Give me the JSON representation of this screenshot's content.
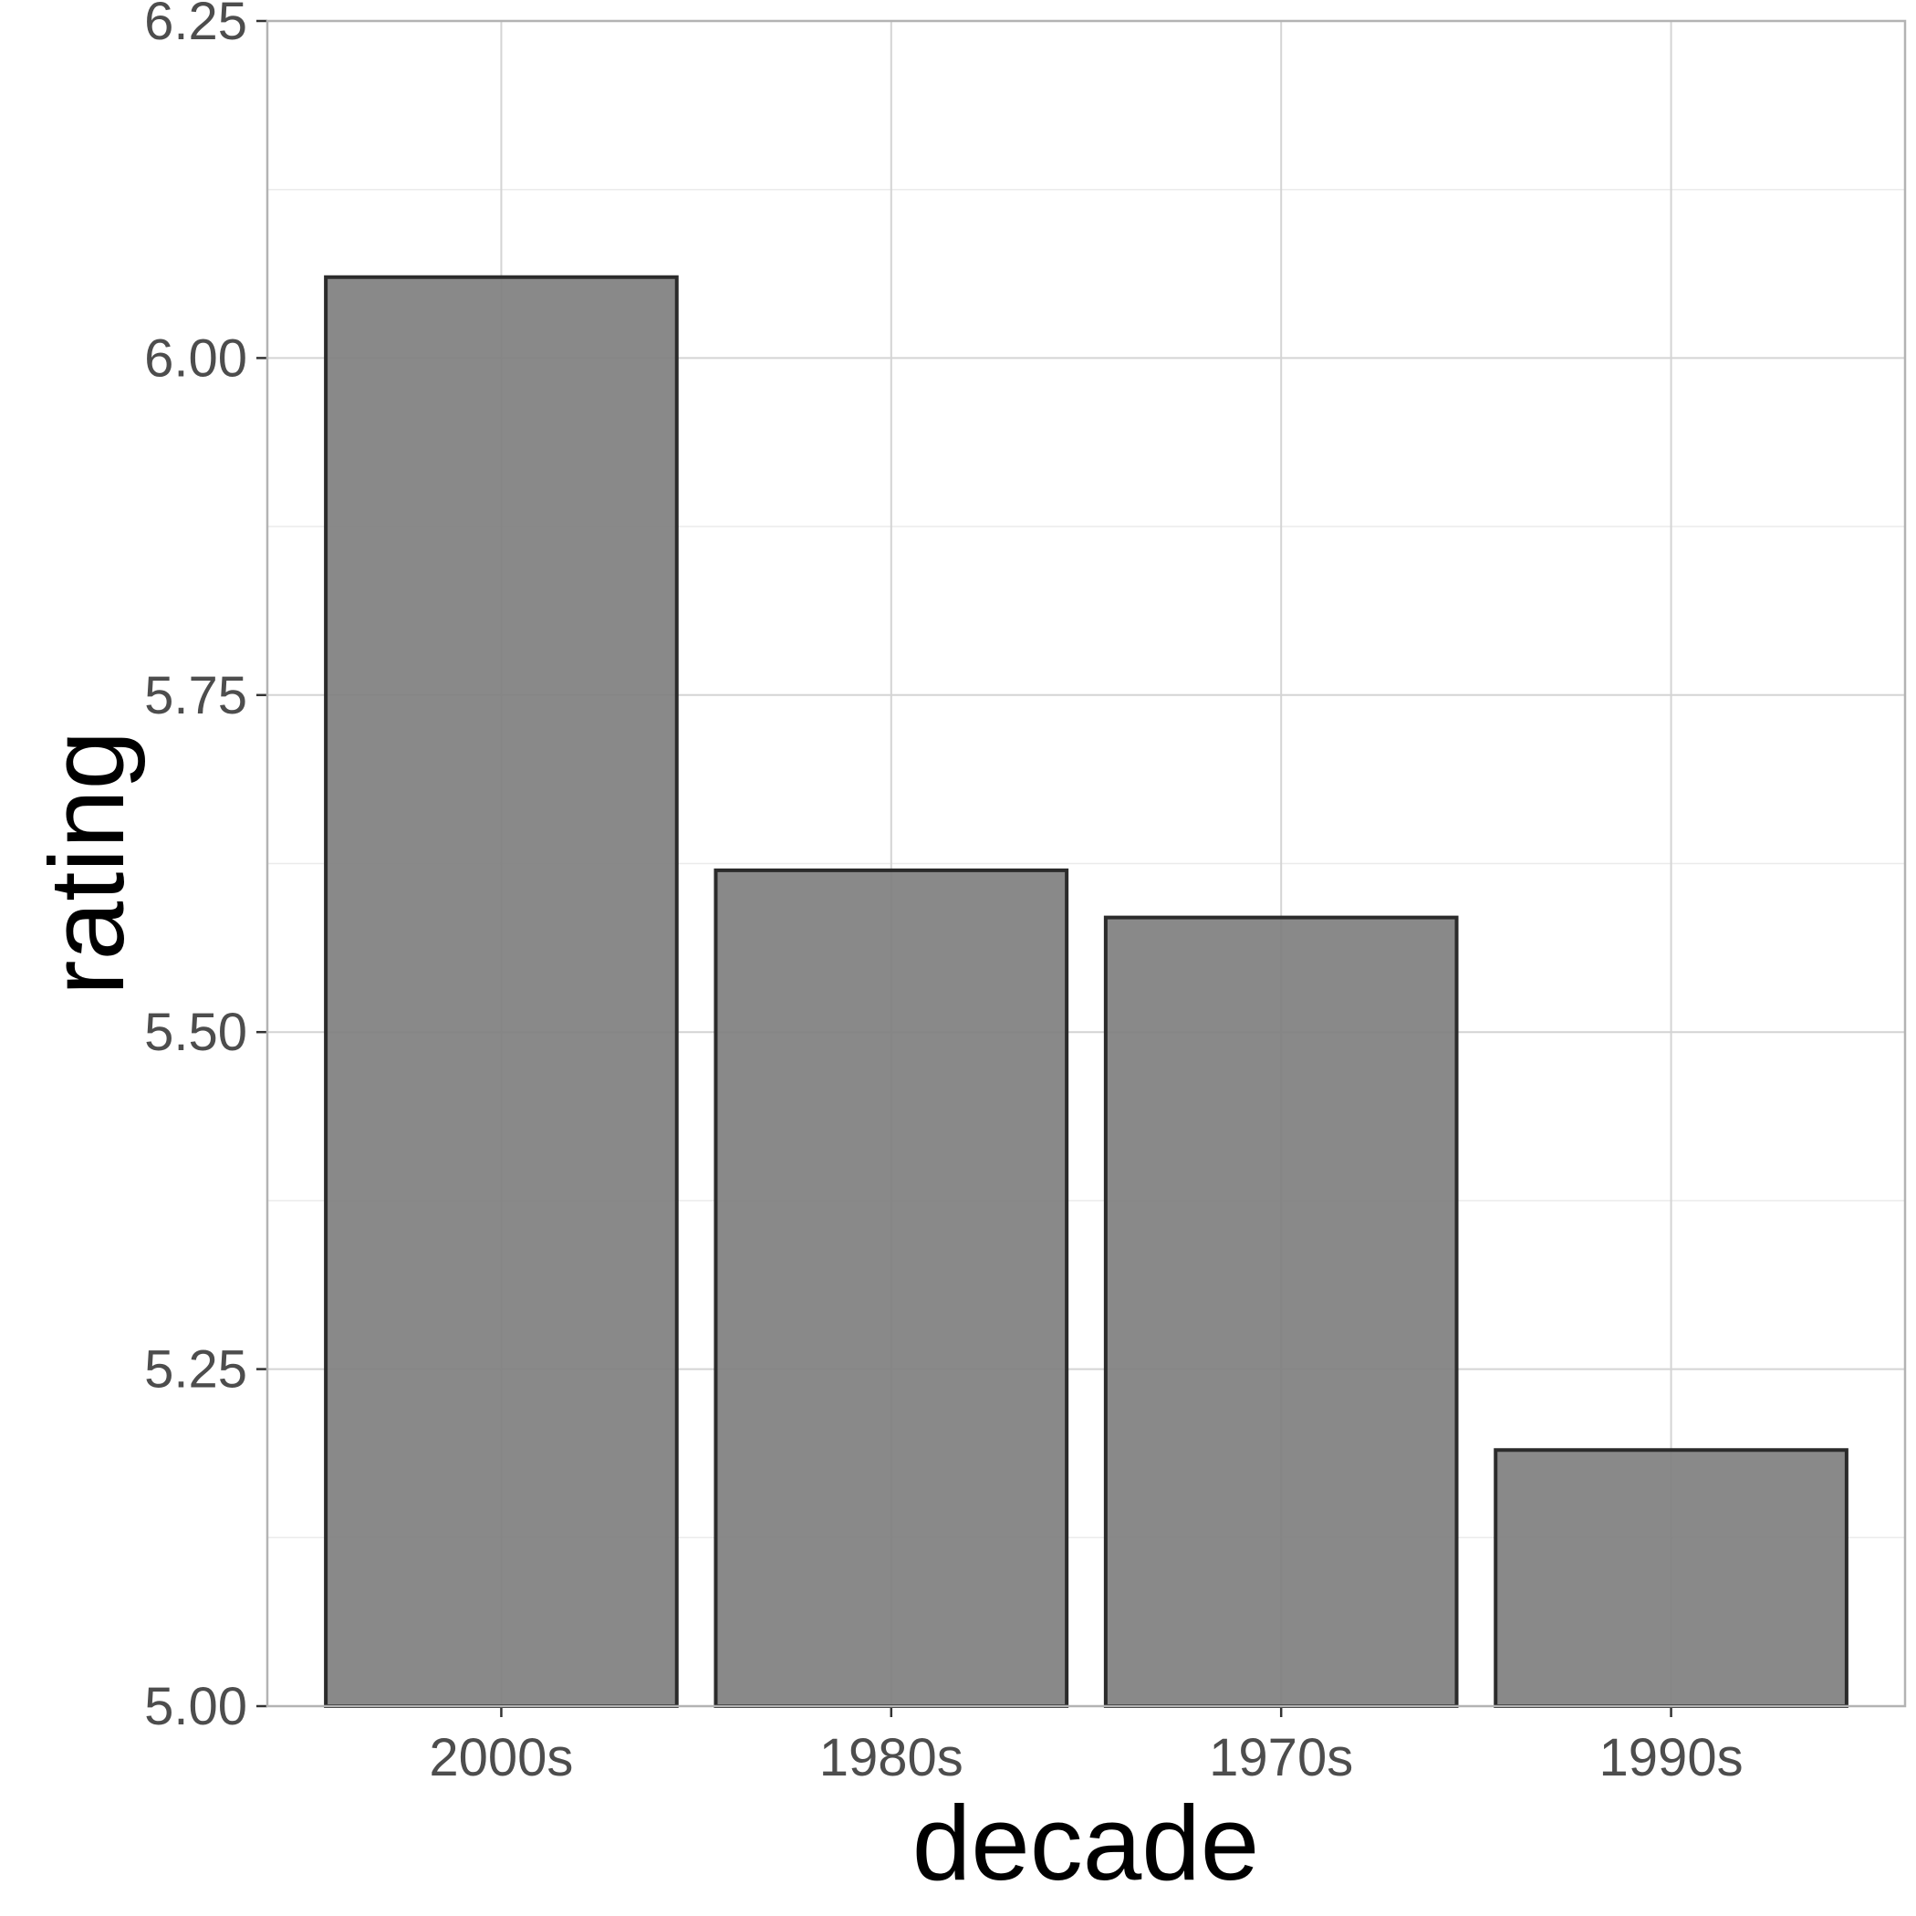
{
  "chart_data": {
    "type": "bar",
    "xlabel": "decade",
    "ylabel": "rating",
    "categories": [
      "2000s",
      "1980s",
      "1970s",
      "1990s"
    ],
    "values": [
      6.06,
      5.62,
      5.585,
      5.19
    ],
    "ylim": [
      5.0,
      6.25
    ],
    "yticks": [
      5.0,
      5.25,
      5.5,
      5.75,
      6.0,
      6.25
    ],
    "ytick_labels": [
      "5.00",
      "5.25",
      "5.50",
      "5.75",
      "6.00",
      "6.25"
    ],
    "grid": true,
    "legend": "none",
    "colors": {
      "bar_fill": "#7f7f7f",
      "bar_outline": "#2b2b2b",
      "grid_major": "#d4d4d4",
      "grid_minor": "#ebebeb",
      "panel_border": "#b3b3b3"
    }
  }
}
